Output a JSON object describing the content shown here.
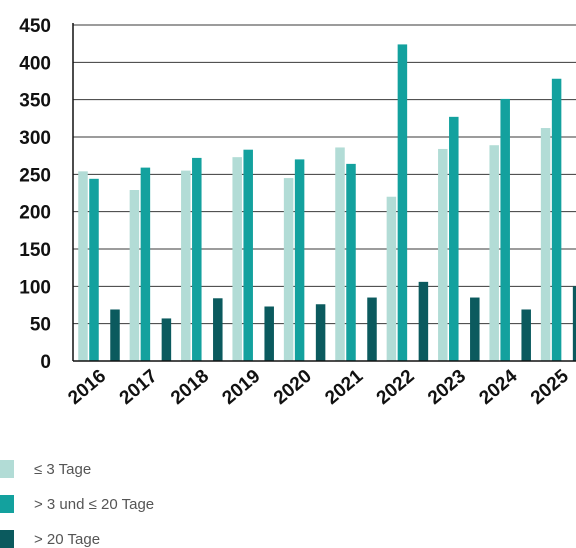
{
  "chart_data": {
    "type": "bar",
    "categories": [
      "2016",
      "2017",
      "2018",
      "2019",
      "2020",
      "2021",
      "2022",
      "2023",
      "2024",
      "2025"
    ],
    "series": [
      {
        "name": "≤ 3 Tage",
        "color": "#b2dcd6",
        "values": [
          254,
          229,
          255,
          273,
          245,
          286,
          220,
          284,
          289,
          312
        ]
      },
      {
        "name": "> 3 und  ≤ 20 Tage",
        "color": "#13a19e",
        "values": [
          244,
          259,
          272,
          283,
          270,
          264,
          424,
          327,
          351,
          378
        ]
      },
      {
        "name": "> 20 Tage",
        "color": "#0b5a5e",
        "values": [
          69,
          57,
          84,
          73,
          76,
          85,
          106,
          85,
          69,
          100
        ]
      }
    ],
    "ylim": [
      0,
      450
    ],
    "yticks": [
      "0",
      "50",
      "100",
      "150",
      "200",
      "250",
      "300",
      "350",
      "400",
      "450"
    ],
    "grid": true,
    "legend_position": "bottom-left"
  }
}
